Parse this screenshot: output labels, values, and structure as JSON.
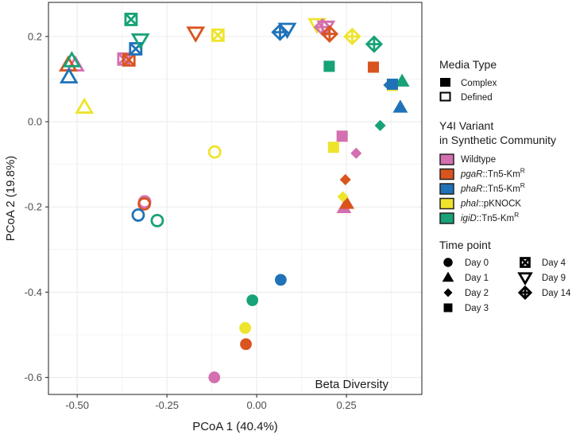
{
  "chart_data": {
    "type": "scatter",
    "title": "",
    "annotation": "Beta Diversity",
    "xlabel": "PCoA 1 (40.4%)",
    "ylabel": "PCoA 2 (19.8%)",
    "xlim": [
      -0.58,
      0.46
    ],
    "ylim": [
      -0.64,
      0.28
    ],
    "xticks": [
      -0.5,
      -0.25,
      0.0,
      0.25
    ],
    "xtick_labels": [
      "-0.50",
      "-0.25",
      "0.00",
      "0.25"
    ],
    "yticks": [
      -0.6,
      -0.4,
      -0.2,
      0.0,
      0.2
    ],
    "ytick_labels": [
      "-0.6",
      "-0.4",
      "-0.2",
      "0.0",
      "0.2"
    ],
    "grid": true,
    "legend_position": "right",
    "legends": {
      "media": {
        "title": "Media Type",
        "items": [
          {
            "key": "complex",
            "label": "Complex",
            "fill": true
          },
          {
            "key": "defined",
            "label": "Defined",
            "fill": false
          }
        ]
      },
      "variant": {
        "title_line1": "Y4I Variant",
        "title_line2": "in Synthetic Community",
        "items": [
          {
            "key": "wildtype",
            "italic": "",
            "plain": "Wildtype",
            "sup": "",
            "color": "#D46FB0"
          },
          {
            "key": "pgaR",
            "italic": "pgaR",
            "plain": "::Tn5-Km",
            "sup": "R",
            "color": "#D9541E"
          },
          {
            "key": "phaR",
            "italic": "phaR",
            "plain": "::Tn5-Km",
            "sup": "R",
            "color": "#1F72B8"
          },
          {
            "key": "phaI",
            "italic": "phaI",
            "plain": "::pKNOCK",
            "sup": "",
            "color": "#EEE42C"
          },
          {
            "key": "igiD",
            "italic": "igiD",
            "plain": "::Tn5-Km",
            "sup": "R",
            "color": "#17A277"
          }
        ]
      },
      "time": {
        "title": "Time point",
        "items": [
          {
            "key": "day0",
            "label": "Day 0",
            "shape": "circle"
          },
          {
            "key": "day1",
            "label": "Day 1",
            "shape": "triangle"
          },
          {
            "key": "day2",
            "label": "Day 2",
            "shape": "diamond"
          },
          {
            "key": "day3",
            "label": "Day 3",
            "shape": "square"
          },
          {
            "key": "day4",
            "label": "Day 4",
            "shape": "square-x"
          },
          {
            "key": "day9",
            "label": "Day 9",
            "shape": "triangle-down"
          },
          {
            "key": "day14",
            "label": "Day 14",
            "shape": "diamond-plus"
          }
        ]
      }
    },
    "points": [
      {
        "variant": "wildtype",
        "time": "day0",
        "media": "complex",
        "x": -0.118,
        "y": -0.6
      },
      {
        "variant": "pgaR",
        "time": "day0",
        "media": "complex",
        "x": -0.03,
        "y": -0.522
      },
      {
        "variant": "phaI",
        "time": "day0",
        "media": "complex",
        "x": -0.032,
        "y": -0.484
      },
      {
        "variant": "igiD",
        "time": "day0",
        "media": "complex",
        "x": -0.012,
        "y": -0.419
      },
      {
        "variant": "phaR",
        "time": "day0",
        "media": "complex",
        "x": 0.067,
        "y": -0.371
      },
      {
        "variant": "wildtype",
        "time": "day0",
        "media": "defined",
        "x": -0.312,
        "y": -0.188
      },
      {
        "variant": "pgaR",
        "time": "day0",
        "media": "defined",
        "x": -0.313,
        "y": -0.193
      },
      {
        "variant": "phaR",
        "time": "day0",
        "media": "defined",
        "x": -0.33,
        "y": -0.219
      },
      {
        "variant": "igiD",
        "time": "day0",
        "media": "defined",
        "x": -0.277,
        "y": -0.232
      },
      {
        "variant": "phaI",
        "time": "day0",
        "media": "defined",
        "x": -0.117,
        "y": -0.071
      },
      {
        "variant": "wildtype",
        "time": "day1",
        "media": "complex",
        "x": 0.243,
        "y": -0.202
      },
      {
        "variant": "pgaR",
        "time": "day1",
        "media": "complex",
        "x": 0.251,
        "y": -0.192
      },
      {
        "variant": "phaR",
        "time": "day1",
        "media": "complex",
        "x": 0.4,
        "y": 0.034
      },
      {
        "variant": "igiD",
        "time": "day1",
        "media": "complex",
        "x": 0.405,
        "y": 0.095
      },
      {
        "variant": "wildtype",
        "time": "day1",
        "media": "defined",
        "x": -0.505,
        "y": 0.133
      },
      {
        "variant": "pgaR",
        "time": "day1",
        "media": "defined",
        "x": -0.525,
        "y": 0.133
      },
      {
        "variant": "igiD",
        "time": "day1",
        "media": "defined",
        "x": -0.515,
        "y": 0.143
      },
      {
        "variant": "phaR",
        "time": "day1",
        "media": "defined",
        "x": -0.523,
        "y": 0.105
      },
      {
        "variant": "phaI",
        "time": "day1",
        "media": "defined",
        "x": -0.48,
        "y": 0.034
      },
      {
        "variant": "wildtype",
        "time": "day2",
        "media": "complex",
        "x": 0.277,
        "y": -0.074
      },
      {
        "variant": "pgaR",
        "time": "day2",
        "media": "complex",
        "x": 0.247,
        "y": -0.136
      },
      {
        "variant": "phaI",
        "time": "day2",
        "media": "complex",
        "x": 0.24,
        "y": -0.176
      },
      {
        "variant": "phaR",
        "time": "day2",
        "media": "complex",
        "x": 0.368,
        "y": 0.086
      },
      {
        "variant": "igiD",
        "time": "day2",
        "media": "complex",
        "x": 0.344,
        "y": -0.009
      },
      {
        "variant": "wildtype",
        "time": "day3",
        "media": "complex",
        "x": 0.238,
        "y": -0.034
      },
      {
        "variant": "phaI",
        "time": "day3",
        "media": "complex",
        "x": 0.214,
        "y": -0.06
      },
      {
        "variant": "igiD",
        "time": "day3",
        "media": "complex",
        "x": 0.202,
        "y": 0.13
      },
      {
        "variant": "pgaR",
        "time": "day3",
        "media": "complex",
        "x": 0.325,
        "y": 0.128
      },
      {
        "variant": "phaI",
        "time": "day3",
        "media": "complex",
        "x": 0.378,
        "y": 0.085
      },
      {
        "variant": "phaR",
        "time": "day3",
        "media": "complex",
        "x": 0.378,
        "y": 0.088
      },
      {
        "variant": "wildtype",
        "time": "day4",
        "media": "defined",
        "x": -0.37,
        "y": 0.147
      },
      {
        "variant": "pgaR",
        "time": "day4",
        "media": "defined",
        "x": -0.356,
        "y": 0.145
      },
      {
        "variant": "phaR",
        "time": "day4",
        "media": "defined",
        "x": -0.337,
        "y": 0.171
      },
      {
        "variant": "igiD",
        "time": "day4",
        "media": "defined",
        "x": -0.35,
        "y": 0.24
      },
      {
        "variant": "phaI",
        "time": "day4",
        "media": "defined",
        "x": -0.108,
        "y": 0.203
      },
      {
        "variant": "igiD",
        "time": "day9",
        "media": "defined",
        "x": -0.324,
        "y": 0.192
      },
      {
        "variant": "pgaR",
        "time": "day9",
        "media": "defined",
        "x": -0.17,
        "y": 0.208
      },
      {
        "variant": "phaR",
        "time": "day9",
        "media": "defined",
        "x": 0.085,
        "y": 0.217
      },
      {
        "variant": "phaI",
        "time": "day9",
        "media": "defined",
        "x": 0.168,
        "y": 0.228
      },
      {
        "variant": "wildtype",
        "time": "day9",
        "media": "defined",
        "x": 0.193,
        "y": 0.222
      },
      {
        "variant": "phaR",
        "time": "day14",
        "media": "defined",
        "x": 0.065,
        "y": 0.21
      },
      {
        "variant": "wildtype",
        "time": "day14",
        "media": "defined",
        "x": 0.183,
        "y": 0.222
      },
      {
        "variant": "pgaR",
        "time": "day14",
        "media": "defined",
        "x": 0.203,
        "y": 0.206
      },
      {
        "variant": "phaI",
        "time": "day14",
        "media": "defined",
        "x": 0.266,
        "y": 0.2
      },
      {
        "variant": "igiD",
        "time": "day14",
        "media": "defined",
        "x": 0.327,
        "y": 0.182
      }
    ]
  }
}
